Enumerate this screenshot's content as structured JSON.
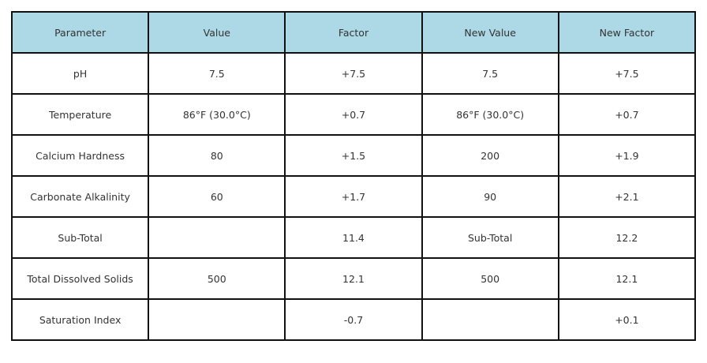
{
  "table": {
    "header": [
      "Parameter",
      "Value",
      "Factor",
      "New Value",
      "New Factor"
    ],
    "rows": [
      [
        "pH",
        "7.5",
        "+7.5",
        "7.5",
        "+7.5"
      ],
      [
        "Temperature",
        "86°F (30.0°C)",
        "+0.7",
        "86°F (30.0°C)",
        "+0.7"
      ],
      [
        "Calcium Hardness",
        "80",
        "+1.5",
        "200",
        "+1.9"
      ],
      [
        "Carbonate Alkalinity",
        "60",
        "+1.7",
        "90",
        "+2.1"
      ],
      [
        "Sub-Total",
        null,
        "11.4",
        "Sub-Total",
        "12.2"
      ],
      [
        "Total Dissolved Solids",
        "500",
        "12.1",
        "500",
        "12.1"
      ],
      [
        "Saturation Index",
        null,
        "-0.7",
        null,
        "+0.1"
      ]
    ]
  }
}
